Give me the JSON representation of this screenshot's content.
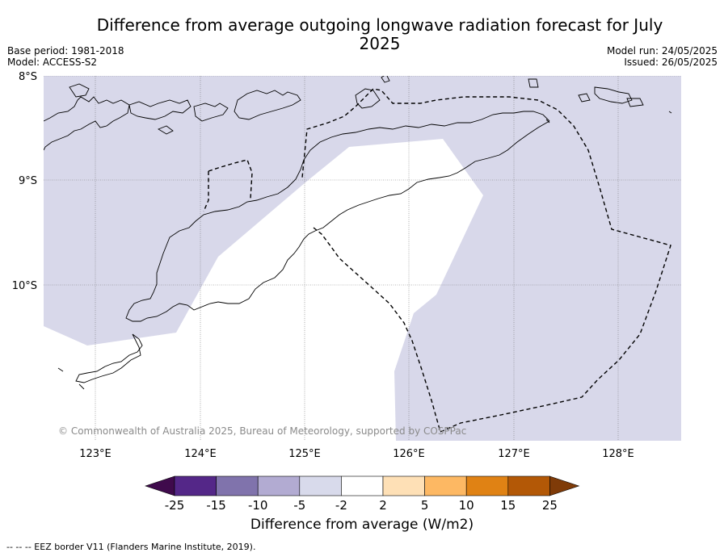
{
  "title": "Difference from average outgoing longwave radiation forecast for July 2025",
  "meta": {
    "base_period": "Base period: 1981-2018",
    "model": "Model: ACCESS-S2",
    "model_run": "Model run: 24/05/2025",
    "issued": "Issued: 26/05/2025"
  },
  "map": {
    "lat_labels": [
      "8°S",
      "9°S",
      "10°S"
    ],
    "lon_labels": [
      "123°E",
      "124°E",
      "125°E",
      "126°E",
      "127°E",
      "128°E"
    ],
    "copyright": "© Commonwealth of Australia 2025, Bureau of Meteorology, supported by COSPPac",
    "colors": {
      "anomaly_fill": "#d8d8ea",
      "neutral": "#ffffff",
      "coast": "#000000",
      "grid": "#888888"
    }
  },
  "colorbar": {
    "title": "Difference from average (W/m2)",
    "ticks": [
      "-25",
      "-15",
      "-10",
      "-5",
      "-2",
      "2",
      "5",
      "10",
      "15",
      "25"
    ],
    "colors": [
      "#3f0a4c",
      "#542788",
      "#8073ac",
      "#b2abd2",
      "#d8daeb",
      "#ffffff",
      "#fee0b6",
      "#fdb863",
      "#e08214",
      "#b35806",
      "#7f3b08"
    ]
  },
  "footnote": "-- -- -- EEZ border V11 (Flanders Marine Institute, 2019)."
}
